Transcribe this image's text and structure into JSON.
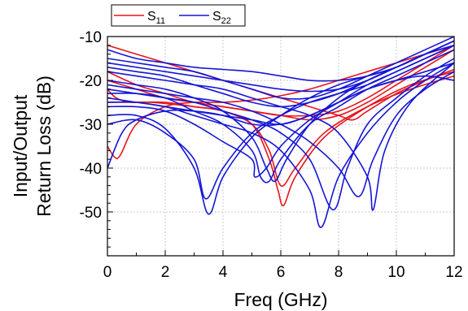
{
  "chart_data": {
    "type": "line",
    "xlabel": "Freq (GHz)",
    "ylabel_line1": "Input/Output",
    "ylabel_line2": "Return Loss (dB)",
    "xlim": [
      0,
      12
    ],
    "ylim": [
      -60,
      -10
    ],
    "x_ticks": [
      "0",
      "2",
      "4",
      "6",
      "8",
      "10",
      "12"
    ],
    "y_ticks": [
      "-10",
      "-20",
      "-30",
      "-40",
      "-50"
    ],
    "y_tick_values": [
      -10,
      -20,
      -30,
      -40,
      -50
    ],
    "grid": true,
    "legend_position": "top-left",
    "colors": {
      "S11": "#e8141c",
      "S22": "#1515d6"
    },
    "legend": [
      {
        "main": "S",
        "sub": "11",
        "color": "#e8141c"
      },
      {
        "main": "S",
        "sub": "22",
        "color": "#1515d6"
      }
    ],
    "series": [
      {
        "group": "S11",
        "x": [
          0,
          0.25,
          0.45,
          1,
          2,
          3,
          4,
          5,
          6,
          7,
          8,
          9,
          10,
          11,
          12
        ],
        "y": [
          -35,
          -37.5,
          -37,
          -30,
          -26,
          -25,
          -25,
          -24.5,
          -23.5,
          -22,
          -20,
          -18,
          -16,
          -14,
          -12
        ]
      },
      {
        "group": "S11",
        "x": [
          0,
          0.3,
          0.8,
          1.5,
          3,
          4,
          5,
          5.6,
          5.9,
          6.1,
          6.5,
          7.5,
          9,
          10.5,
          12
        ],
        "y": [
          -22,
          -24,
          -25,
          -25,
          -26,
          -27,
          -30,
          -38,
          -45,
          -48.5,
          -42,
          -33,
          -26,
          -21,
          -18
        ]
      },
      {
        "group": "S11",
        "x": [
          0,
          1,
          2,
          3,
          4,
          5,
          6,
          7,
          8,
          8.5,
          9,
          10,
          11,
          12
        ],
        "y": [
          -12,
          -14,
          -16,
          -18,
          -20,
          -22,
          -24,
          -26,
          -28,
          -29,
          -27,
          -23,
          -20,
          -17.5
        ]
      },
      {
        "group": "S11",
        "x": [
          0,
          1,
          2,
          3,
          4,
          5,
          6,
          7,
          8,
          9,
          10,
          11,
          12
        ],
        "y": [
          -20,
          -22,
          -24,
          -25,
          -26,
          -27,
          -28,
          -28,
          -27,
          -24,
          -20,
          -16,
          -12
        ]
      },
      {
        "group": "S11",
        "x": [
          0,
          1,
          2,
          3,
          4,
          5,
          6,
          7,
          8,
          9,
          10,
          11,
          12
        ],
        "y": [
          -18,
          -21,
          -23,
          -25,
          -26,
          -27,
          -28,
          -29,
          -28,
          -25,
          -21,
          -17,
          -13
        ]
      },
      {
        "group": "S11",
        "x": [
          0,
          1,
          2,
          3,
          4,
          5,
          5.6,
          6,
          6.5,
          7.5,
          9,
          10.5,
          12
        ],
        "y": [
          -25,
          -25,
          -25,
          -26,
          -27,
          -30,
          -36,
          -44,
          -40,
          -32,
          -26,
          -22,
          -19
        ]
      },
      {
        "group": "S22",
        "x": [
          0,
          1,
          2,
          3,
          4,
          5,
          6,
          7,
          8,
          9,
          10,
          11,
          12
        ],
        "y": [
          -13,
          -15,
          -16,
          -17,
          -17.5,
          -18,
          -19,
          -20,
          -20,
          -19,
          -17,
          -14,
          -11
        ]
      },
      {
        "group": "S22",
        "x": [
          0,
          1,
          2,
          3,
          3.4,
          4,
          5,
          6,
          7,
          8,
          9,
          10,
          11,
          12
        ],
        "y": [
          -30,
          -29,
          -32,
          -38,
          -47,
          -40,
          -32,
          -28,
          -25,
          -23,
          -21,
          -18,
          -15,
          -12
        ]
      },
      {
        "group": "S22",
        "x": [
          0,
          1,
          2,
          3,
          3.5,
          4,
          5,
          6,
          7,
          8,
          9,
          10,
          11,
          12
        ],
        "y": [
          -28,
          -28,
          -31,
          -40,
          -50.5,
          -42,
          -33,
          -28,
          -24,
          -21,
          -19,
          -17,
          -14,
          -11
        ]
      },
      {
        "group": "S22",
        "x": [
          0,
          1,
          2,
          3,
          4,
          5,
          5.3,
          5.6,
          6,
          7,
          8,
          9,
          10,
          11,
          12
        ],
        "y": [
          -23,
          -23,
          -24,
          -27,
          -30,
          -36,
          -42,
          -43,
          -38,
          -30,
          -26,
          -22,
          -19,
          -16,
          -13
        ]
      },
      {
        "group": "S22",
        "x": [
          0,
          1,
          2,
          3,
          4,
          5,
          5.5,
          5.8,
          6.2,
          7,
          8,
          9,
          10,
          11,
          12
        ],
        "y": [
          -20,
          -21,
          -22,
          -24,
          -27,
          -33,
          -40,
          -43,
          -38,
          -30,
          -24,
          -20,
          -17,
          -14,
          -11
        ]
      },
      {
        "group": "S22",
        "x": [
          0,
          1,
          2,
          3,
          4,
          5,
          6,
          7,
          7.4,
          8,
          9,
          10,
          11,
          12
        ],
        "y": [
          -24,
          -25,
          -26,
          -28,
          -30,
          -32,
          -36,
          -45,
          -53.5,
          -42,
          -32,
          -25,
          -20,
          -16
        ]
      },
      {
        "group": "S22",
        "x": [
          0,
          1,
          2,
          3,
          4,
          5,
          6,
          7,
          7.8,
          8.3,
          9,
          10,
          11,
          12
        ],
        "y": [
          -22,
          -23,
          -24,
          -25,
          -27,
          -29,
          -32,
          -38,
          -49.5,
          -40,
          -30,
          -24,
          -19,
          -15
        ]
      },
      {
        "group": "S22",
        "x": [
          0,
          1,
          2,
          3,
          4,
          5,
          6,
          7,
          8,
          8.7,
          9.2,
          10,
          11,
          12
        ],
        "y": [
          -21,
          -22,
          -23,
          -24,
          -25,
          -27,
          -30,
          -34,
          -40,
          -46.5,
          -38,
          -28,
          -22,
          -18
        ]
      },
      {
        "group": "S22",
        "x": [
          0,
          1,
          2,
          3,
          4,
          5,
          6,
          7,
          8,
          9,
          9.2,
          9.6,
          10.5,
          12
        ],
        "y": [
          -18,
          -19,
          -20,
          -21,
          -22,
          -24,
          -26,
          -28,
          -32,
          -42,
          -49.5,
          -36,
          -25,
          -16
        ]
      },
      {
        "group": "S22",
        "x": [
          0,
          1,
          2,
          3,
          4,
          5,
          6,
          7,
          8,
          9,
          10,
          11,
          12
        ],
        "y": [
          -16,
          -17,
          -18,
          -19,
          -20,
          -21,
          -22,
          -22.5,
          -22,
          -20,
          -17,
          -14,
          -11
        ]
      },
      {
        "group": "S22",
        "x": [
          0,
          1,
          2,
          3,
          4,
          5,
          6,
          7,
          8,
          9,
          10,
          11,
          12
        ],
        "y": [
          -17,
          -18,
          -19,
          -21,
          -23,
          -25,
          -26,
          -25,
          -23,
          -20,
          -17,
          -14,
          -12
        ]
      },
      {
        "group": "S22",
        "x": [
          0,
          0.5,
          1,
          2,
          3,
          4,
          5,
          6,
          7,
          8,
          9,
          10,
          11,
          12
        ],
        "y": [
          -40,
          -32,
          -29,
          -27,
          -27,
          -28,
          -30,
          -30,
          -28,
          -25,
          -22,
          -20,
          -18,
          -16
        ]
      },
      {
        "group": "S22",
        "x": [
          0,
          1,
          2,
          3,
          4,
          5,
          6,
          7,
          8,
          9,
          10,
          11,
          12
        ],
        "y": [
          -25,
          -25,
          -26,
          -27,
          -28,
          -29,
          -30,
          -28,
          -25,
          -22,
          -20,
          -19,
          -20
        ]
      },
      {
        "group": "S22",
        "x": [
          0,
          1,
          2,
          3,
          4,
          5,
          6,
          7,
          8,
          9,
          10,
          11,
          12
        ],
        "y": [
          -15,
          -16,
          -17,
          -18,
          -20,
          -22,
          -24,
          -24,
          -22,
          -19,
          -16,
          -13,
          -10
        ]
      },
      {
        "group": "S22",
        "x": [
          0,
          1,
          2,
          3,
          4,
          5,
          5.1,
          5.5,
          6,
          7,
          8,
          9,
          10,
          11,
          12
        ],
        "y": [
          -26,
          -26,
          -27,
          -30,
          -34,
          -38,
          -42,
          -40,
          -35,
          -29,
          -25,
          -21,
          -18,
          -15,
          -12
        ]
      }
    ]
  }
}
